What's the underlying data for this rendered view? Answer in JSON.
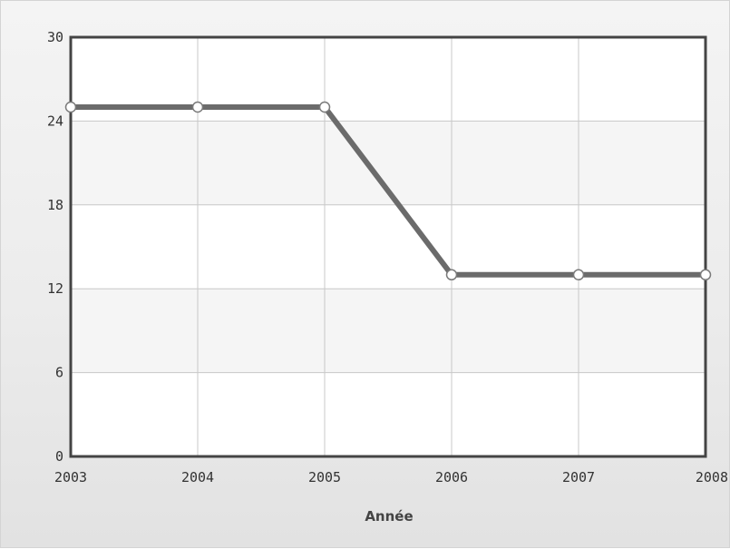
{
  "chart_data": {
    "type": "line",
    "title": "",
    "xlabel": "Année",
    "ylabel": "",
    "x": [
      "2003",
      "2004",
      "2005",
      "2006",
      "2007",
      "2008"
    ],
    "series": [
      {
        "values": [
          25,
          25,
          25,
          13,
          13,
          13
        ]
      }
    ],
    "yticks": [
      "0",
      "6",
      "12",
      "18",
      "24",
      "30"
    ],
    "ylim": [
      0,
      30
    ],
    "grid": true,
    "legend": "none",
    "colors": {
      "line": "#6b6b6b",
      "marker_fill": "#ffffff",
      "marker_stroke": "#7a7a7a",
      "grid": "#c8c8c8",
      "band": "#f5f5f5",
      "plot_bg": "#ffffff",
      "axis_frame": "#444444"
    }
  }
}
